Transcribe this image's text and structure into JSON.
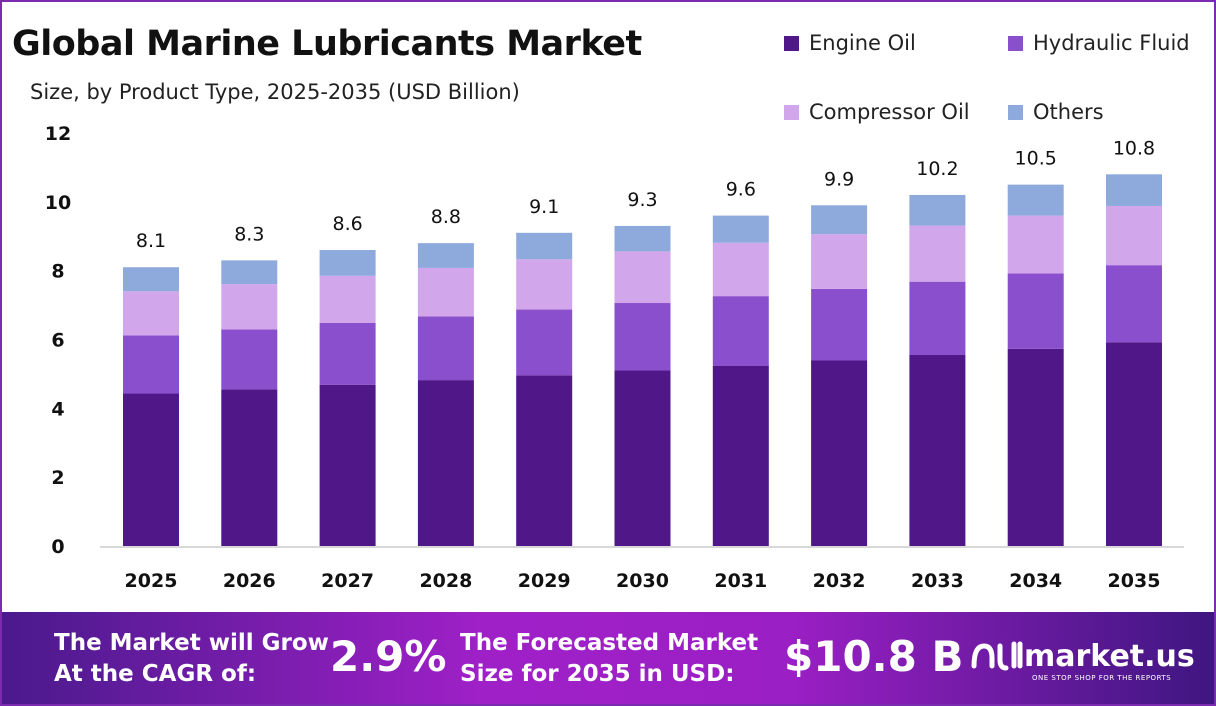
{
  "chart_data": {
    "type": "bar",
    "stacked": true,
    "title": "Global Marine Lubricants Market",
    "subtitle": "Size, by Product Type, 2025-2035 (USD Billion)",
    "categories": [
      "2025",
      "2026",
      "2027",
      "2028",
      "2029",
      "2030",
      "2031",
      "2032",
      "2033",
      "2034",
      "2035"
    ],
    "series": [
      {
        "name": "Engine Oil",
        "color": "#4f1787",
        "values": [
          4.43,
          4.55,
          4.68,
          4.82,
          4.96,
          5.1,
          5.24,
          5.39,
          5.55,
          5.73,
          5.92
        ]
      },
      {
        "name": "Hydraulic Fluid",
        "color": "#8a4fcc",
        "values": [
          1.69,
          1.74,
          1.8,
          1.85,
          1.91,
          1.96,
          2.02,
          2.08,
          2.13,
          2.19,
          2.24
        ]
      },
      {
        "name": "Compressor Oil",
        "color": "#d2a6ea",
        "values": [
          1.28,
          1.32,
          1.37,
          1.41,
          1.46,
          1.5,
          1.55,
          1.59,
          1.63,
          1.68,
          1.72
        ]
      },
      {
        "name": "Others",
        "color": "#8eaadc",
        "values": [
          0.7,
          0.69,
          0.75,
          0.72,
          0.77,
          0.74,
          0.79,
          0.84,
          0.89,
          0.9,
          0.92
        ]
      }
    ],
    "totals": [
      "8.1",
      "8.3",
      "8.6",
      "8.8",
      "9.1",
      "9.3",
      "9.6",
      "9.9",
      "10.2",
      "10.5",
      "10.8"
    ],
    "yticks": [
      "0",
      "2",
      "4",
      "6",
      "8",
      "10",
      "12"
    ],
    "ylim": [
      0,
      12
    ],
    "grid": false,
    "legend": "top-right"
  },
  "footer": {
    "cagr_label_1": "The Market will Grow",
    "cagr_label_2": "At the CAGR of:",
    "cagr_value": "2.9%",
    "size_label_1": "The Forecasted Market",
    "size_label_2": "Size for 2035 in USD:",
    "size_value": "$10.8 B",
    "brand": "market.us",
    "brand_tagline": "ONE STOP SHOP FOR THE REPORTS"
  }
}
